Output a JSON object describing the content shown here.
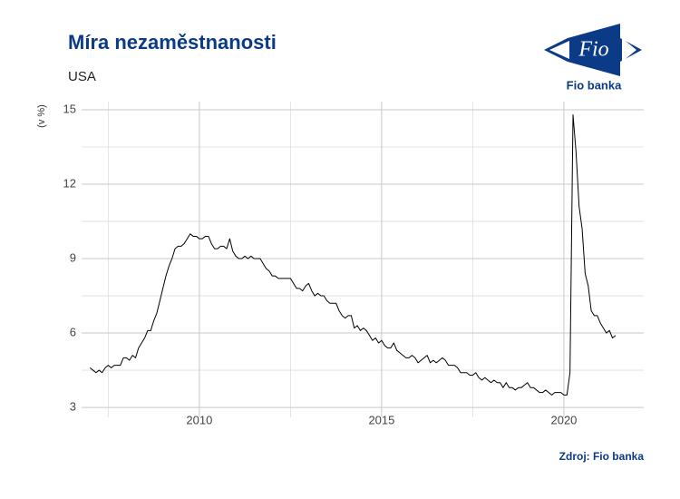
{
  "logo": {
    "mark": "Fio",
    "name": "Fio banka"
  },
  "chart_data": {
    "type": "line",
    "title": "Míra nezaměstnanosti",
    "subtitle": "USA",
    "y_label": "(v %)",
    "source": "Zdroj: Fio banka",
    "color": "#000000",
    "grid": true,
    "xlim": [
      2006.77,
      2022.19
    ],
    "ylim": [
      2.6,
      15.33
    ],
    "xticks": [
      2010,
      2015,
      2020
    ],
    "yticks": [
      3,
      6,
      9,
      12,
      15
    ],
    "xminor": [
      2007.5,
      2012.5,
      2017.5
    ],
    "yminor": [
      4.5,
      7.5,
      10.5,
      13.5
    ],
    "x": [
      2007.0,
      2007.083,
      2007.167,
      2007.25,
      2007.333,
      2007.417,
      2007.5,
      2007.583,
      2007.667,
      2007.75,
      2007.833,
      2007.917,
      2008.0,
      2008.083,
      2008.167,
      2008.25,
      2008.333,
      2008.417,
      2008.5,
      2008.583,
      2008.667,
      2008.75,
      2008.833,
      2008.917,
      2009.0,
      2009.083,
      2009.167,
      2009.25,
      2009.333,
      2009.417,
      2009.5,
      2009.583,
      2009.667,
      2009.75,
      2009.833,
      2009.917,
      2010.0,
      2010.083,
      2010.167,
      2010.25,
      2010.333,
      2010.417,
      2010.5,
      2010.583,
      2010.667,
      2010.75,
      2010.833,
      2010.917,
      2011.0,
      2011.083,
      2011.167,
      2011.25,
      2011.333,
      2011.417,
      2011.5,
      2011.583,
      2011.667,
      2011.75,
      2011.833,
      2011.917,
      2012.0,
      2012.083,
      2012.167,
      2012.25,
      2012.333,
      2012.417,
      2012.5,
      2012.583,
      2012.667,
      2012.75,
      2012.833,
      2012.917,
      2013.0,
      2013.083,
      2013.167,
      2013.25,
      2013.333,
      2013.417,
      2013.5,
      2013.583,
      2013.667,
      2013.75,
      2013.833,
      2013.917,
      2014.0,
      2014.083,
      2014.167,
      2014.25,
      2014.333,
      2014.417,
      2014.5,
      2014.583,
      2014.667,
      2014.75,
      2014.833,
      2014.917,
      2015.0,
      2015.083,
      2015.167,
      2015.25,
      2015.333,
      2015.417,
      2015.5,
      2015.583,
      2015.667,
      2015.75,
      2015.833,
      2015.917,
      2016.0,
      2016.083,
      2016.167,
      2016.25,
      2016.333,
      2016.417,
      2016.5,
      2016.583,
      2016.667,
      2016.75,
      2016.833,
      2016.917,
      2017.0,
      2017.083,
      2017.167,
      2017.25,
      2017.333,
      2017.417,
      2017.5,
      2017.583,
      2017.667,
      2017.75,
      2017.833,
      2017.917,
      2018.0,
      2018.083,
      2018.167,
      2018.25,
      2018.333,
      2018.417,
      2018.5,
      2018.583,
      2018.667,
      2018.75,
      2018.833,
      2018.917,
      2019.0,
      2019.083,
      2019.167,
      2019.25,
      2019.333,
      2019.417,
      2019.5,
      2019.583,
      2019.667,
      2019.75,
      2019.833,
      2019.917,
      2020.0,
      2020.083,
      2020.167,
      2020.25,
      2020.333,
      2020.417,
      2020.5,
      2020.583,
      2020.667,
      2020.75,
      2020.833,
      2020.917,
      2021.0,
      2021.083,
      2021.167,
      2021.25,
      2021.333,
      2021.417
    ],
    "values": [
      4.6,
      4.5,
      4.4,
      4.5,
      4.4,
      4.6,
      4.7,
      4.6,
      4.7,
      4.7,
      4.7,
      5.0,
      5.0,
      4.9,
      5.1,
      5.0,
      5.4,
      5.6,
      5.8,
      6.1,
      6.1,
      6.5,
      6.8,
      7.3,
      7.8,
      8.3,
      8.7,
      9.0,
      9.4,
      9.5,
      9.5,
      9.6,
      9.8,
      10.0,
      9.9,
      9.9,
      9.8,
      9.8,
      9.9,
      9.9,
      9.6,
      9.4,
      9.4,
      9.5,
      9.5,
      9.4,
      9.8,
      9.3,
      9.1,
      9.0,
      9.0,
      9.1,
      9.0,
      9.1,
      9.0,
      9.0,
      9.0,
      8.8,
      8.6,
      8.5,
      8.3,
      8.3,
      8.2,
      8.2,
      8.2,
      8.2,
      8.2,
      8.0,
      7.8,
      7.8,
      7.7,
      7.9,
      8.0,
      7.7,
      7.5,
      7.6,
      7.5,
      7.5,
      7.3,
      7.2,
      7.2,
      7.2,
      6.9,
      6.7,
      6.6,
      6.7,
      6.7,
      6.2,
      6.3,
      6.1,
      6.2,
      6.1,
      5.9,
      5.7,
      5.8,
      5.6,
      5.7,
      5.5,
      5.4,
      5.4,
      5.6,
      5.3,
      5.2,
      5.1,
      5.0,
      5.0,
      5.1,
      5.0,
      4.8,
      4.9,
      5.0,
      5.1,
      4.8,
      4.9,
      4.8,
      4.9,
      5.0,
      4.9,
      4.7,
      4.7,
      4.7,
      4.6,
      4.4,
      4.4,
      4.4,
      4.3,
      4.3,
      4.4,
      4.2,
      4.1,
      4.2,
      4.1,
      4.0,
      4.1,
      4.0,
      4.0,
      3.8,
      4.0,
      3.8,
      3.8,
      3.7,
      3.8,
      3.8,
      3.9,
      4.0,
      3.8,
      3.8,
      3.7,
      3.6,
      3.6,
      3.7,
      3.6,
      3.5,
      3.6,
      3.6,
      3.6,
      3.5,
      3.5,
      4.4,
      14.8,
      13.3,
      11.1,
      10.2,
      8.4,
      7.9,
      6.9,
      6.7,
      6.7,
      6.4,
      6.2,
      6.0,
      6.1,
      5.8,
      5.9
    ]
  }
}
